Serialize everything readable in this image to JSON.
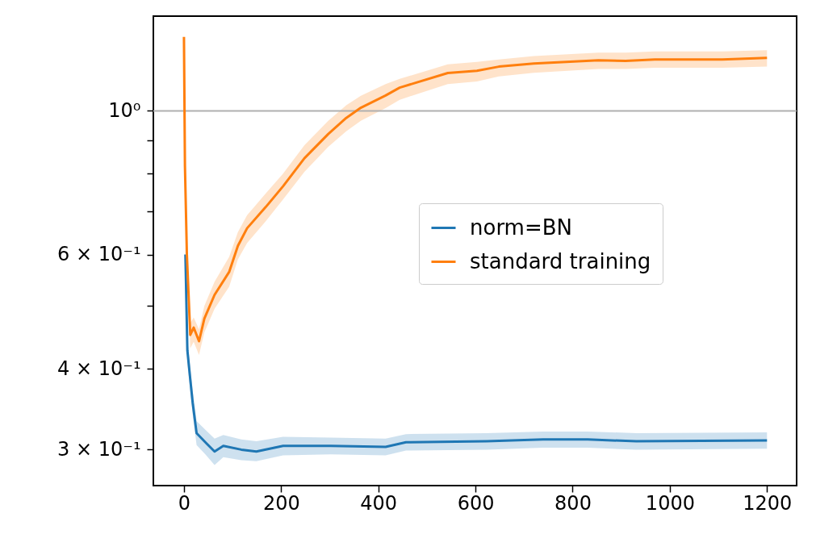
{
  "chart_data": {
    "type": "line",
    "log": "y",
    "grid": false,
    "legend": "right",
    "xlim": [
      -63,
      1261
    ],
    "xticks": [
      0,
      200,
      400,
      600,
      800,
      1000,
      1200
    ],
    "ylim": [
      0.264,
      1.4
    ],
    "yticks": [
      {
        "value": 0.3,
        "label": "3 × 10⁻¹"
      },
      {
        "value": 0.4,
        "label": "4 × 10⁻¹"
      },
      {
        "value": 0.5,
        "label": null
      },
      {
        "value": 0.6,
        "label": "6 × 10⁻¹"
      },
      {
        "value": 0.7,
        "label": null
      },
      {
        "value": 0.8,
        "label": null
      },
      {
        "value": 0.9,
        "label": null
      },
      {
        "value": 1,
        "label": "10⁰"
      }
    ],
    "ref_lines": [
      {
        "axis": "y",
        "value": 1,
        "color": "#b0b0b0"
      }
    ],
    "series": [
      {
        "name": "norm=BN",
        "color": "#1f77b4",
        "x": [
          3,
          7,
          13,
          18,
          26,
          44,
          63,
          81,
          118,
          149,
          204,
          302,
          415,
          457,
          623,
          739,
          831,
          931,
          1200
        ],
        "values": [
          0.6,
          0.427,
          0.385,
          0.354,
          0.318,
          0.308,
          0.298,
          0.304,
          0.3,
          0.298,
          0.304,
          0.304,
          0.303,
          0.308,
          0.309,
          0.311,
          0.311,
          0.309,
          0.31
        ],
        "lower": [
          0.58,
          0.41,
          0.37,
          0.34,
          0.305,
          0.295,
          0.284,
          0.292,
          0.289,
          0.288,
          0.294,
          0.295,
          0.294,
          0.299,
          0.3,
          0.302,
          0.302,
          0.3,
          0.301
        ],
        "upper": [
          0.62,
          0.445,
          0.4,
          0.37,
          0.332,
          0.322,
          0.312,
          0.316,
          0.311,
          0.309,
          0.314,
          0.313,
          0.312,
          0.317,
          0.318,
          0.32,
          0.32,
          0.318,
          0.319
        ]
      },
      {
        "name": "standard training",
        "color": "#ff7f0e",
        "x": [
          0,
          2,
          6,
          13,
          20,
          31,
          42,
          63,
          93,
          111,
          130,
          168,
          204,
          248,
          297,
          334,
          364,
          415,
          444,
          543,
          603,
          648,
          720,
          853,
          909,
          969,
          1108,
          1200
        ],
        "values": [
          1.3,
          0.824,
          0.6,
          0.451,
          0.463,
          0.441,
          0.478,
          0.52,
          0.564,
          0.619,
          0.659,
          0.71,
          0.765,
          0.845,
          0.921,
          0.975,
          1.011,
          1.056,
          1.086,
          1.144,
          1.153,
          1.17,
          1.183,
          1.197,
          1.194,
          1.2,
          1.2,
          1.207
        ],
        "lower": [
          1.28,
          0.8,
          0.58,
          0.43,
          0.44,
          0.42,
          0.455,
          0.495,
          0.535,
          0.59,
          0.625,
          0.675,
          0.73,
          0.805,
          0.88,
          0.93,
          0.965,
          1.01,
          1.04,
          1.1,
          1.11,
          1.13,
          1.145,
          1.16,
          1.16,
          1.165,
          1.165,
          1.17
        ],
        "upper": [
          1.32,
          0.85,
          0.62,
          0.47,
          0.48,
          0.46,
          0.5,
          0.545,
          0.595,
          0.65,
          0.69,
          0.745,
          0.8,
          0.885,
          0.965,
          1.02,
          1.055,
          1.1,
          1.12,
          1.18,
          1.19,
          1.2,
          1.215,
          1.23,
          1.23,
          1.235,
          1.235,
          1.24
        ]
      }
    ]
  }
}
